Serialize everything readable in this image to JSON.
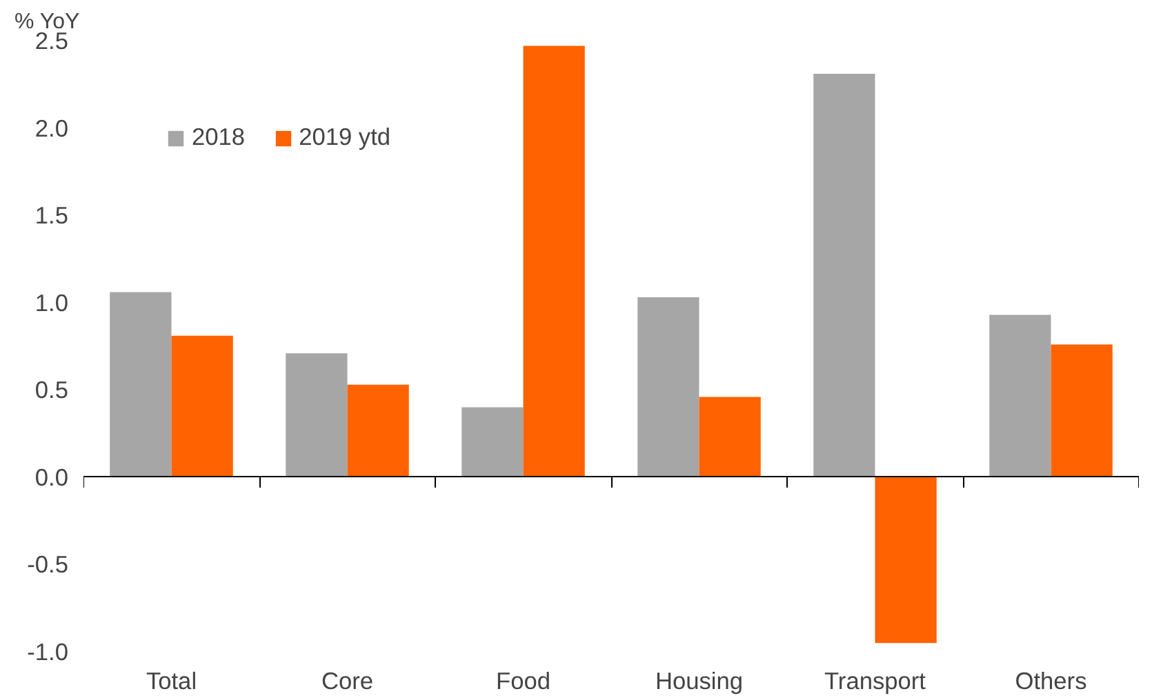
{
  "chart_data": {
    "type": "bar",
    "ylabel": "% YoY",
    "categories": [
      "Total",
      "Core",
      "Food",
      "Housing",
      "Transport",
      "Others"
    ],
    "series": [
      {
        "name": "2018",
        "color": "#a6a6a6",
        "values": [
          1.06,
          0.71,
          0.4,
          1.03,
          2.31,
          0.93
        ]
      },
      {
        "name": "2019 ytd",
        "color": "#ff6200",
        "values": [
          0.81,
          0.53,
          2.47,
          0.46,
          -0.95,
          0.76
        ]
      }
    ],
    "ylim": [
      -1.0,
      2.5
    ],
    "yticks": [
      {
        "value": -1.0,
        "label": "-1.0"
      },
      {
        "value": -0.5,
        "label": "-0.5"
      },
      {
        "value": 0.0,
        "label": "0.0"
      },
      {
        "value": 0.5,
        "label": "0.5"
      },
      {
        "value": 1.0,
        "label": "1.0"
      },
      {
        "value": 1.5,
        "label": "1.5"
      },
      {
        "value": 2.0,
        "label": "2.0"
      },
      {
        "value": 2.5,
        "label": "2.5"
      }
    ],
    "legend": "top left"
  }
}
